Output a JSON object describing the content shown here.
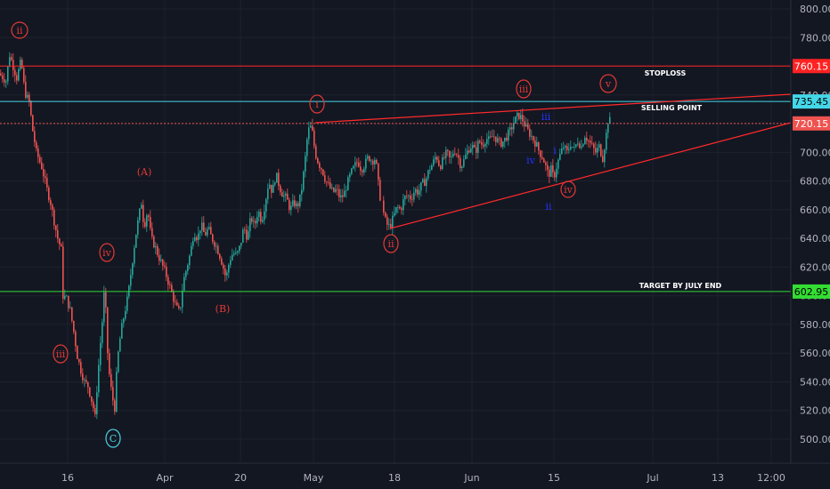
{
  "chart_data": {
    "type": "candlestick",
    "y_axis": {
      "side": "right",
      "range": [
        490,
        805
      ],
      "ticks": [
        800,
        780,
        760,
        740,
        720,
        700,
        680,
        660,
        640,
        620,
        600,
        580,
        560,
        540,
        520,
        500
      ]
    },
    "x_axis": {
      "tick_labels": [
        "16",
        "Apr",
        "20",
        "May",
        "18",
        "Jun",
        "15",
        "Jul",
        "13",
        "12:00"
      ]
    },
    "horizontal_levels": [
      {
        "label": "STOPLOSS",
        "value": 760.15,
        "value_label": "760.15",
        "color": "#ff2222",
        "tag_color": "#ff2222",
        "tag_text_color": "#ffffff",
        "style": "solid"
      },
      {
        "label": "SELLING POINT",
        "value": 735.45,
        "value_label": "735.45",
        "color": "#44d7e8",
        "tag_color": "#44d7e8",
        "tag_text_color": "#000000",
        "style": "solid"
      },
      {
        "label": "",
        "value": 720.15,
        "value_label": "720.15",
        "color": "#ef5350",
        "tag_color": "#ef5350",
        "tag_text_color": "#ffffff",
        "style": "dotted"
      },
      {
        "label": "TARGET BY JULY END",
        "value": 602.95,
        "value_label": "602.95",
        "color": "#33dd33",
        "tag_color": "#33dd33",
        "tag_text_color": "#000000",
        "style": "solid"
      }
    ],
    "wave_labels": [
      {
        "text": "ii",
        "color": "#e53935",
        "circled": true
      },
      {
        "text": "iii",
        "color": "#e53935",
        "circled": true
      },
      {
        "text": "iv",
        "color": "#e53935",
        "circled": true
      },
      {
        "text": "C",
        "color": "#4dd0e1",
        "circled": true
      },
      {
        "text": "(A)",
        "color": "#e53935",
        "circled": false
      },
      {
        "text": "(B)",
        "color": "#e53935",
        "circled": false
      },
      {
        "text": "i",
        "color": "#e53935",
        "circled": true
      },
      {
        "text": "ii",
        "color": "#e53935",
        "circled": true
      },
      {
        "text": "iii",
        "color": "#e53935",
        "circled": true
      },
      {
        "text": "v",
        "color": "#e53935",
        "circled": true
      },
      {
        "text": "iv",
        "color": "#e53935",
        "circled": true
      },
      {
        "text": "iii",
        "color": "#2233ff",
        "circled": false
      },
      {
        "text": "iv",
        "color": "#2233ff",
        "circled": false
      },
      {
        "text": "i",
        "color": "#2233ff",
        "circled": false
      },
      {
        "text": "ii",
        "color": "#2233ff",
        "circled": false
      }
    ],
    "price_path": [
      [
        0,
        755
      ],
      [
        8,
        750
      ],
      [
        12,
        768
      ],
      [
        20,
        752
      ],
      [
        25,
        764
      ],
      [
        29,
        742
      ],
      [
        34,
        735
      ],
      [
        38,
        715
      ],
      [
        42,
        700
      ],
      [
        48,
        690
      ],
      [
        54,
        674
      ],
      [
        58,
        665
      ],
      [
        62,
        652
      ],
      [
        66,
        640
      ],
      [
        70,
        632
      ],
      [
        72,
        600
      ],
      [
        76,
        598
      ],
      [
        80,
        590
      ],
      [
        84,
        575
      ],
      [
        88,
        558
      ],
      [
        92,
        548
      ],
      [
        96,
        540
      ],
      [
        100,
        537
      ],
      [
        103,
        530
      ],
      [
        106,
        522
      ],
      [
        108,
        515
      ],
      [
        110,
        535
      ],
      [
        113,
        560
      ],
      [
        116,
        582
      ],
      [
        119,
        610
      ],
      [
        121,
        568
      ],
      [
        124,
        545
      ],
      [
        127,
        530
      ],
      [
        130,
        522
      ],
      [
        133,
        555
      ],
      [
        137,
        575
      ],
      [
        141,
        588
      ],
      [
        145,
        600
      ],
      [
        149,
        620
      ],
      [
        153,
        640
      ],
      [
        157,
        655
      ],
      [
        160,
        665
      ],
      [
        163,
        648
      ],
      [
        167,
        660
      ],
      [
        171,
        640
      ],
      [
        175,
        635
      ],
      [
        179,
        628
      ],
      [
        183,
        622
      ],
      [
        187,
        616
      ],
      [
        191,
        608
      ],
      [
        195,
        600
      ],
      [
        199,
        592
      ],
      [
        203,
        588
      ],
      [
        207,
        610
      ],
      [
        211,
        620
      ],
      [
        215,
        630
      ],
      [
        219,
        645
      ],
      [
        223,
        640
      ],
      [
        227,
        650
      ],
      [
        231,
        642
      ],
      [
        235,
        647
      ],
      [
        239,
        640
      ],
      [
        243,
        636
      ],
      [
        247,
        630
      ],
      [
        251,
        622
      ],
      [
        255,
        612
      ],
      [
        259,
        625
      ],
      [
        263,
        630
      ],
      [
        267,
        628
      ],
      [
        271,
        635
      ],
      [
        275,
        648
      ],
      [
        279,
        640
      ],
      [
        283,
        655
      ],
      [
        287,
        648
      ],
      [
        291,
        660
      ],
      [
        295,
        652
      ],
      [
        299,
        665
      ],
      [
        303,
        680
      ],
      [
        307,
        672
      ],
      [
        311,
        685
      ],
      [
        315,
        676
      ],
      [
        319,
        670
      ],
      [
        323,
        668
      ],
      [
        327,
        660
      ],
      [
        331,
        665
      ],
      [
        335,
        662
      ],
      [
        339,
        670
      ],
      [
        343,
        690
      ],
      [
        347,
        715
      ],
      [
        351,
        718
      ],
      [
        355,
        700
      ],
      [
        359,
        692
      ],
      [
        363,
        688
      ],
      [
        367,
        680
      ],
      [
        371,
        676
      ],
      [
        375,
        672
      ],
      [
        379,
        674
      ],
      [
        383,
        668
      ],
      [
        387,
        670
      ],
      [
        391,
        678
      ],
      [
        395,
        685
      ],
      [
        399,
        690
      ],
      [
        403,
        694
      ],
      [
        407,
        688
      ],
      [
        411,
        692
      ],
      [
        415,
        697
      ],
      [
        419,
        694
      ],
      [
        423,
        696
      ],
      [
        427,
        672
      ],
      [
        431,
        660
      ],
      [
        435,
        650
      ],
      [
        439,
        648
      ],
      [
        443,
        655
      ],
      [
        447,
        662
      ],
      [
        451,
        660
      ],
      [
        455,
        668
      ],
      [
        459,
        670
      ],
      [
        463,
        668
      ],
      [
        467,
        674
      ],
      [
        471,
        672
      ],
      [
        475,
        678
      ],
      [
        479,
        680
      ],
      [
        483,
        688
      ],
      [
        487,
        692
      ],
      [
        491,
        698
      ],
      [
        495,
        690
      ],
      [
        499,
        695
      ],
      [
        503,
        700
      ],
      [
        507,
        694
      ],
      [
        511,
        702
      ],
      [
        515,
        698
      ],
      [
        519,
        690
      ],
      [
        523,
        696
      ],
      [
        527,
        702
      ],
      [
        531,
        705
      ],
      [
        535,
        700
      ],
      [
        539,
        708
      ],
      [
        543,
        705
      ],
      [
        547,
        710
      ],
      [
        551,
        708
      ],
      [
        555,
        712
      ],
      [
        559,
        709
      ],
      [
        563,
        706
      ],
      [
        567,
        708
      ],
      [
        571,
        712
      ],
      [
        575,
        716
      ],
      [
        579,
        722
      ],
      [
        583,
        726
      ],
      [
        587,
        724
      ],
      [
        591,
        718
      ],
      [
        595,
        714
      ],
      [
        599,
        710
      ],
      [
        603,
        706
      ],
      [
        607,
        700
      ],
      [
        611,
        696
      ],
      [
        614,
        690
      ],
      [
        617,
        684
      ],
      [
        620,
        688
      ],
      [
        623,
        682
      ],
      [
        626,
        690
      ],
      [
        630,
        698
      ],
      [
        634,
        704
      ],
      [
        638,
        700
      ],
      [
        642,
        706
      ],
      [
        646,
        702
      ],
      [
        650,
        708
      ],
      [
        654,
        704
      ],
      [
        658,
        712
      ],
      [
        662,
        708
      ],
      [
        666,
        704
      ],
      [
        670,
        700
      ],
      [
        674,
        704
      ],
      [
        678,
        696
      ],
      [
        681,
        708
      ],
      [
        684,
        722
      ]
    ]
  }
}
